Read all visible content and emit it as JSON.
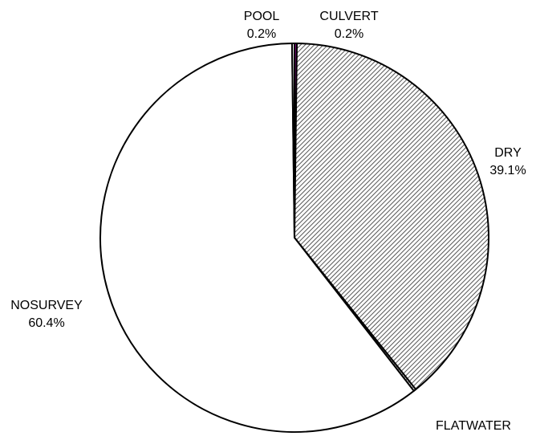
{
  "chart_data": {
    "type": "pie",
    "categories": [
      "CULVERT",
      "DRY",
      "FLATWATER",
      "NOSURVEY",
      "POOL"
    ],
    "values": [
      0.2,
      39.1,
      0.2,
      60.4,
      0.2
    ],
    "value_labels": [
      "0.2%",
      "39.1%",
      "0.2%",
      "60.4%",
      "0.2%"
    ],
    "colors": [
      "#800080",
      "#c8c8c8",
      "#404040",
      "#ffffff",
      "#ffffff"
    ],
    "hatch": [
      false,
      true,
      true,
      false,
      false
    ]
  }
}
